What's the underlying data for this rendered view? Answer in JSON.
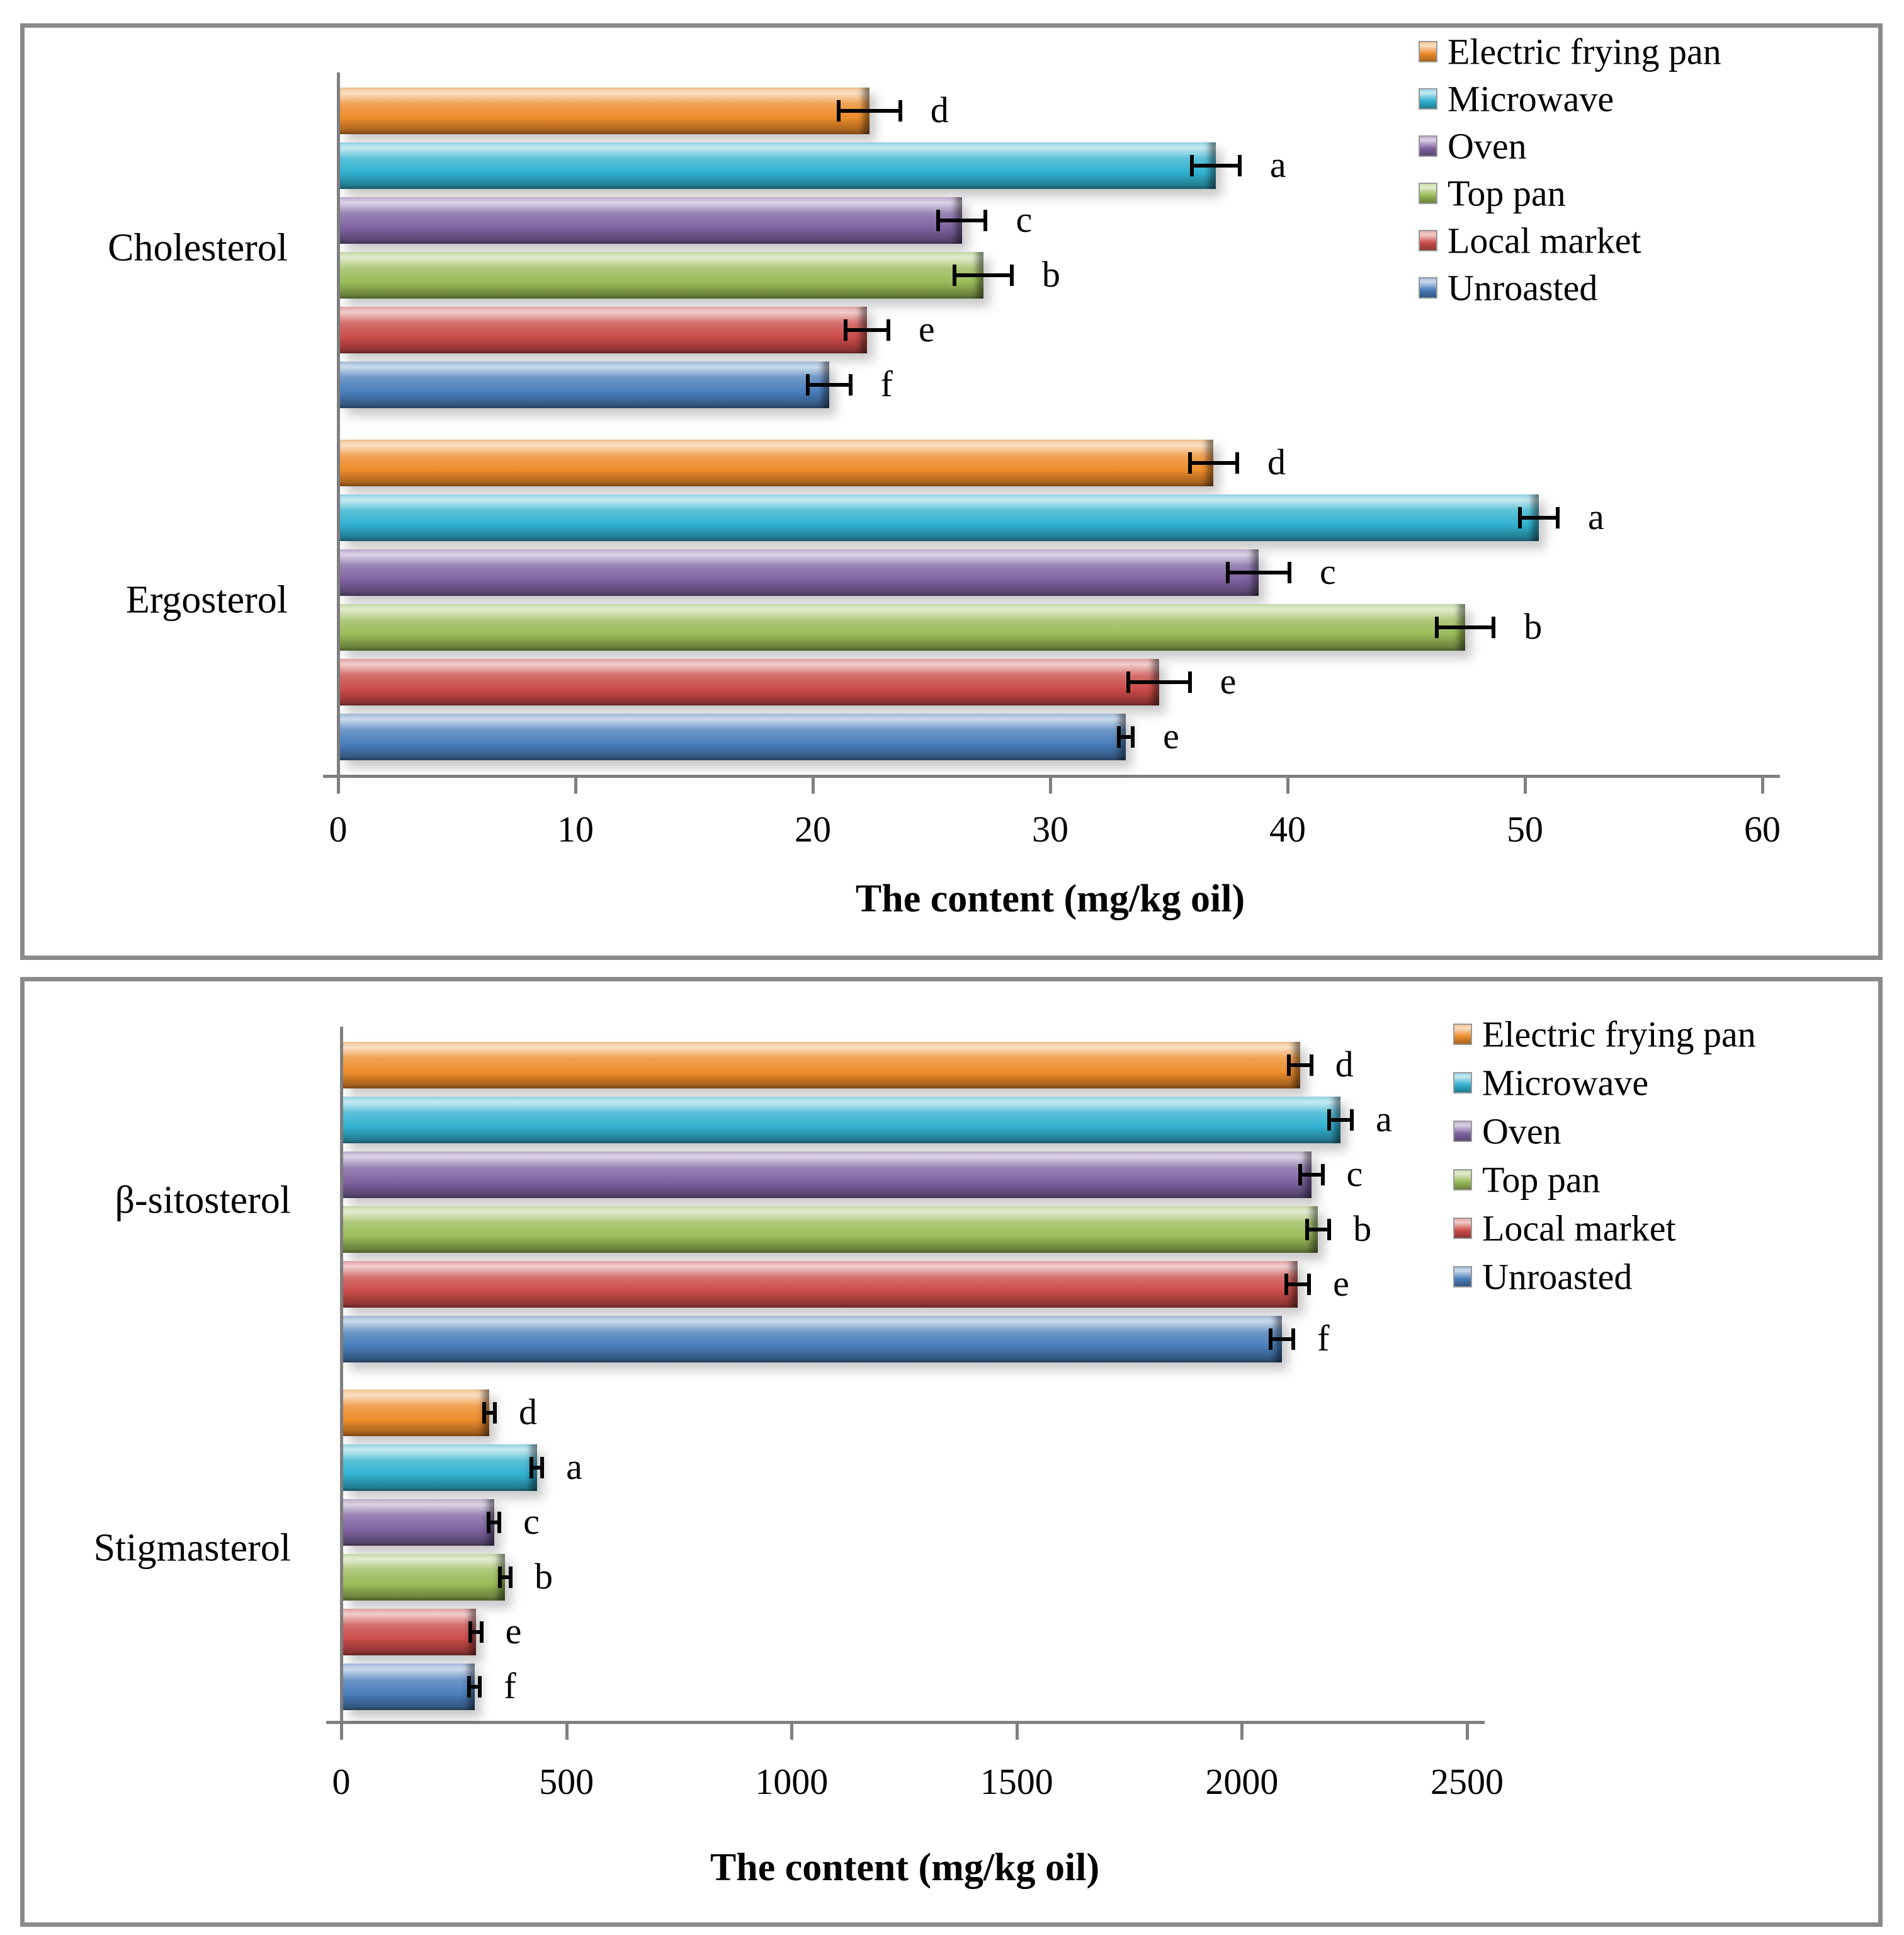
{
  "figure": {
    "panel_count": 2,
    "border_color": "#8A8A8A",
    "axis_color": "#808080",
    "text_color": "#000000"
  },
  "chart_data": [
    {
      "type": "bar",
      "orientation": "horizontal",
      "title": "",
      "xlabel": "The content (mg/kg oil)",
      "ylabel": "",
      "xlim": [
        0,
        60
      ],
      "xticks": [
        0,
        10,
        20,
        30,
        40,
        50,
        60
      ],
      "grid": false,
      "legend_position": "top-right",
      "categories": [
        "Cholesterol",
        "Ergosterol"
      ],
      "series": [
        {
          "name": "Electric frying pan",
          "color": "#EE8D2B",
          "values": [
            22.3,
            36.8
          ],
          "errors": [
            1.3,
            1.0
          ],
          "letters": [
            "d",
            "d"
          ]
        },
        {
          "name": "Microwave",
          "color": "#31B2D0",
          "values": [
            36.9,
            50.5
          ],
          "errors": [
            1.0,
            0.8
          ],
          "letters": [
            "a",
            "a"
          ]
        },
        {
          "name": "Oven",
          "color": "#8064A2",
          "values": [
            26.2,
            38.7
          ],
          "errors": [
            1.0,
            1.3
          ],
          "letters": [
            "c",
            "c"
          ]
        },
        {
          "name": "Top pan",
          "color": "#9ABB59",
          "values": [
            27.1,
            47.4
          ],
          "errors": [
            1.2,
            1.2
          ],
          "letters": [
            "b",
            "b"
          ]
        },
        {
          "name": "Local market",
          "color": "#CB4D4A",
          "values": [
            22.2,
            34.5
          ],
          "errors": [
            0.9,
            1.3
          ],
          "letters": [
            "e",
            "e"
          ]
        },
        {
          "name": "Unroasted",
          "color": "#4A7EBB",
          "values": [
            20.6,
            33.1
          ],
          "errors": [
            0.9,
            0.3
          ],
          "letters": [
            "f",
            "e"
          ]
        }
      ]
    },
    {
      "type": "bar",
      "orientation": "horizontal",
      "title": "",
      "xlabel": "The content (mg/kg oil)",
      "ylabel": "",
      "xlim": [
        0,
        2500
      ],
      "xticks": [
        0,
        500,
        1000,
        1500,
        2000,
        2500
      ],
      "grid": false,
      "legend_position": "top-right",
      "categories": [
        "β-sitosterol",
        "Stigmasterol"
      ],
      "series": [
        {
          "name": "Electric frying pan",
          "color": "#EE8D2B",
          "values": [
            2125,
            325
          ],
          "errors": [
            25,
            12
          ],
          "letters": [
            "d",
            "d"
          ]
        },
        {
          "name": "Microwave",
          "color": "#31B2D0",
          "values": [
            2215,
            430
          ],
          "errors": [
            25,
            12
          ],
          "letters": [
            "a",
            "a"
          ]
        },
        {
          "name": "Oven",
          "color": "#8064A2",
          "values": [
            2150,
            335
          ],
          "errors": [
            25,
            12
          ],
          "letters": [
            "c",
            "c"
          ]
        },
        {
          "name": "Top pan",
          "color": "#9ABB59",
          "values": [
            2165,
            360
          ],
          "errors": [
            25,
            12
          ],
          "letters": [
            "b",
            "b"
          ]
        },
        {
          "name": "Local market",
          "color": "#CB4D4A",
          "values": [
            2120,
            295
          ],
          "errors": [
            25,
            12
          ],
          "letters": [
            "e",
            "e"
          ]
        },
        {
          "name": "Unroasted",
          "color": "#4A7EBB",
          "values": [
            2085,
            292
          ],
          "errors": [
            25,
            12
          ],
          "letters": [
            "f",
            "f"
          ]
        }
      ]
    }
  ]
}
